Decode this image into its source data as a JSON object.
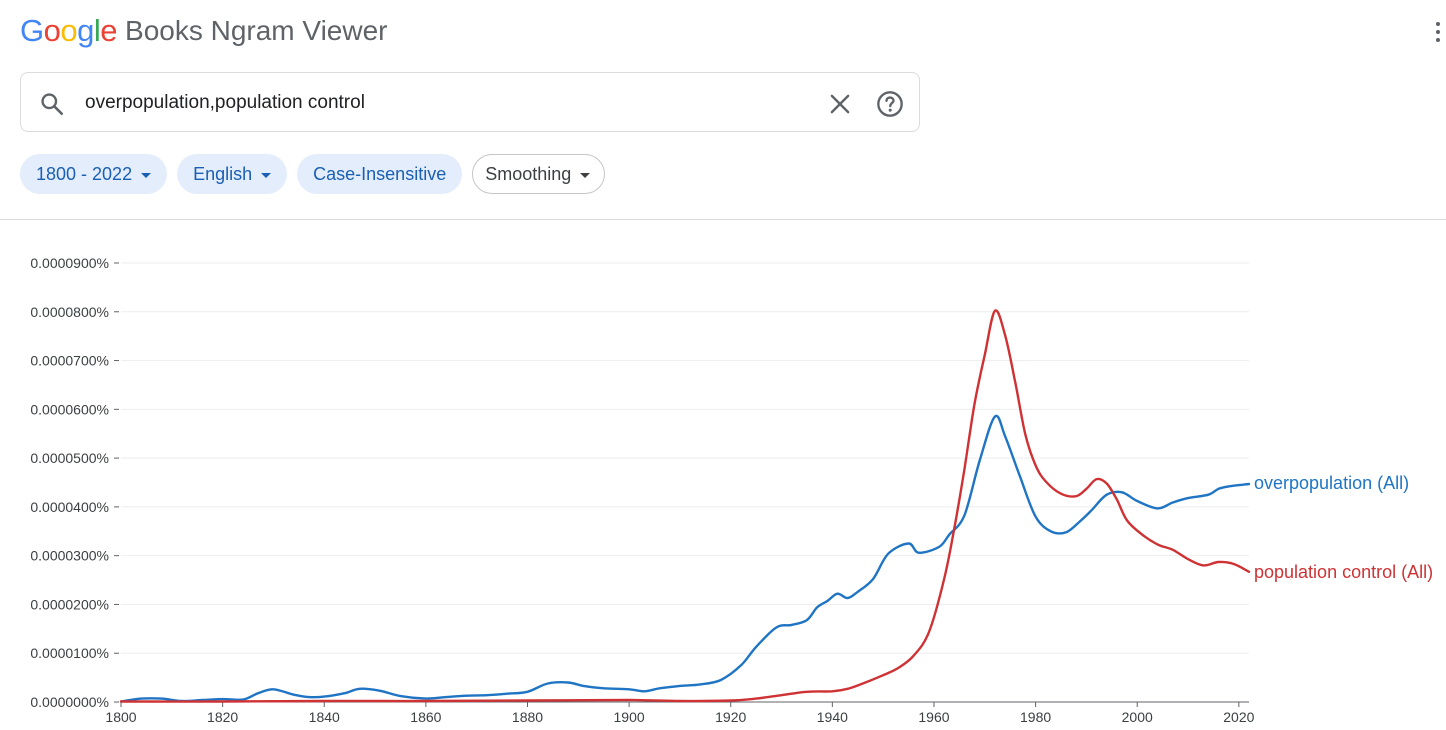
{
  "header": {
    "logo_letters": [
      {
        "ch": "G",
        "color": "#4285F4"
      },
      {
        "ch": "o",
        "color": "#EA4335"
      },
      {
        "ch": "o",
        "color": "#FBBC05"
      },
      {
        "ch": "g",
        "color": "#4285F4"
      },
      {
        "ch": "l",
        "color": "#34A853"
      },
      {
        "ch": "e",
        "color": "#EA4335"
      }
    ],
    "product": "Books Ngram Viewer"
  },
  "search": {
    "value": "overpopulation,population control",
    "icons": {
      "search": "search-icon",
      "clear": "close-icon",
      "help": "help-icon",
      "menu": "more-vert-icon"
    }
  },
  "filters": {
    "year_range": "1800 - 2022",
    "corpus": "English",
    "case": "Case-Insensitive",
    "smoothing": "Smoothing"
  },
  "colors": {
    "accent": "#1a5fb4",
    "chip_bg": "#e3edfb",
    "series1": "#1f75c3",
    "series2": "#cf3234"
  },
  "chart_data": {
    "type": "line",
    "xlim": [
      1800,
      2022
    ],
    "ylim": [
      0,
      9e-07
    ],
    "x_ticks": [
      1800,
      1820,
      1840,
      1860,
      1880,
      1900,
      1920,
      1940,
      1960,
      1980,
      2000,
      2020
    ],
    "y_ticks": [
      {
        "value": 0,
        "label": "0.0000000%"
      },
      {
        "value": 1e-07,
        "label": "0.0000100%"
      },
      {
        "value": 2e-07,
        "label": "0.0000200%"
      },
      {
        "value": 3e-07,
        "label": "0.0000300%"
      },
      {
        "value": 4e-07,
        "label": "0.0000400%"
      },
      {
        "value": 5e-07,
        "label": "0.0000500%"
      },
      {
        "value": 6e-07,
        "label": "0.0000600%"
      },
      {
        "value": 7e-07,
        "label": "0.0000700%"
      },
      {
        "value": 8e-07,
        "label": "0.0000800%"
      },
      {
        "value": 9e-07,
        "label": "0.0000900%"
      }
    ],
    "grid": true,
    "legend": "inline-right",
    "series": [
      {
        "name": "overpopulation (All)",
        "color": "#1f75c3",
        "points": [
          [
            1800,
            1e-09
          ],
          [
            1804,
            7e-09
          ],
          [
            1808,
            7e-09
          ],
          [
            1812,
            2e-09
          ],
          [
            1816,
            4e-09
          ],
          [
            1820,
            6e-09
          ],
          [
            1824,
            5e-09
          ],
          [
            1827,
            1.8e-08
          ],
          [
            1830,
            2.6e-08
          ],
          [
            1834,
            1.5e-08
          ],
          [
            1837,
            1e-08
          ],
          [
            1840,
            1.1e-08
          ],
          [
            1844,
            1.8e-08
          ],
          [
            1847,
            2.7e-08
          ],
          [
            1851,
            2.3e-08
          ],
          [
            1855,
            1.2e-08
          ],
          [
            1860,
            7e-09
          ],
          [
            1864,
            1e-08
          ],
          [
            1868,
            1.3e-08
          ],
          [
            1872,
            1.4e-08
          ],
          [
            1876,
            1.7e-08
          ],
          [
            1880,
            2.1e-08
          ],
          [
            1884,
            3.8e-08
          ],
          [
            1888,
            4e-08
          ],
          [
            1891,
            3.3e-08
          ],
          [
            1895,
            2.8e-08
          ],
          [
            1900,
            2.6e-08
          ],
          [
            1903,
            2.2e-08
          ],
          [
            1906,
            2.8e-08
          ],
          [
            1910,
            3.3e-08
          ],
          [
            1914,
            3.6e-08
          ],
          [
            1918,
            4.5e-08
          ],
          [
            1922,
            7.5e-08
          ],
          [
            1925,
            1.13e-07
          ],
          [
            1929,
            1.53e-07
          ],
          [
            1932,
            1.58e-07
          ],
          [
            1935,
            1.68e-07
          ],
          [
            1937,
            1.94e-07
          ],
          [
            1939,
            2.07e-07
          ],
          [
            1941,
            2.22e-07
          ],
          [
            1943,
            2.13e-07
          ],
          [
            1945,
            2.26e-07
          ],
          [
            1948,
            2.52e-07
          ],
          [
            1951,
            3.04e-07
          ],
          [
            1955,
            3.25e-07
          ],
          [
            1957,
            3.06e-07
          ],
          [
            1961,
            3.18e-07
          ],
          [
            1963,
            3.43e-07
          ],
          [
            1966,
            3.83e-07
          ],
          [
            1969,
            4.95e-07
          ],
          [
            1972,
            5.85e-07
          ],
          [
            1974,
            5.45e-07
          ],
          [
            1977,
            4.6e-07
          ],
          [
            1980,
            3.8e-07
          ],
          [
            1983,
            3.5e-07
          ],
          [
            1986,
            3.48e-07
          ],
          [
            1989,
            3.73e-07
          ],
          [
            1991,
            3.93e-07
          ],
          [
            1994,
            4.25e-07
          ],
          [
            1997,
            4.3e-07
          ],
          [
            2000,
            4.12e-07
          ],
          [
            2004,
            3.97e-07
          ],
          [
            2007,
            4.09e-07
          ],
          [
            2010,
            4.18e-07
          ],
          [
            2014,
            4.25e-07
          ],
          [
            2016,
            4.37e-07
          ],
          [
            2018,
            4.42e-07
          ],
          [
            2022,
            4.47e-07
          ]
        ]
      },
      {
        "name": "population control (All)",
        "color": "#cf3234",
        "points": [
          [
            1800,
            1e-09
          ],
          [
            1820,
            1e-09
          ],
          [
            1840,
            2e-09
          ],
          [
            1860,
            2e-09
          ],
          [
            1880,
            3e-09
          ],
          [
            1900,
            4e-09
          ],
          [
            1910,
            2e-09
          ],
          [
            1920,
            3e-09
          ],
          [
            1925,
            7e-09
          ],
          [
            1930,
            1.4e-08
          ],
          [
            1935,
            2.1e-08
          ],
          [
            1940,
            2.2e-08
          ],
          [
            1943,
            2.7e-08
          ],
          [
            1946,
            3.8e-08
          ],
          [
            1950,
            5.5e-08
          ],
          [
            1953,
            7e-08
          ],
          [
            1956,
            9.5e-08
          ],
          [
            1959,
            1.43e-07
          ],
          [
            1962,
            2.52e-07
          ],
          [
            1964,
            3.56e-07
          ],
          [
            1966,
            4.78e-07
          ],
          [
            1968,
            6.12e-07
          ],
          [
            1970,
            7.12e-07
          ],
          [
            1972,
            8.02e-07
          ],
          [
            1974,
            7.52e-07
          ],
          [
            1976,
            6.55e-07
          ],
          [
            1978,
            5.48e-07
          ],
          [
            1980,
            4.85e-07
          ],
          [
            1982,
            4.52e-07
          ],
          [
            1985,
            4.27e-07
          ],
          [
            1988,
            4.22e-07
          ],
          [
            1990,
            4.37e-07
          ],
          [
            1992,
            4.57e-07
          ],
          [
            1994,
            4.48e-07
          ],
          [
            1996,
            4.15e-07
          ],
          [
            1998,
            3.72e-07
          ],
          [
            2001,
            3.43e-07
          ],
          [
            2004,
            3.23e-07
          ],
          [
            2007,
            3.12e-07
          ],
          [
            2010,
            2.93e-07
          ],
          [
            2013,
            2.8e-07
          ],
          [
            2016,
            2.87e-07
          ],
          [
            2019,
            2.83e-07
          ],
          [
            2022,
            2.67e-07
          ]
        ]
      }
    ]
  }
}
